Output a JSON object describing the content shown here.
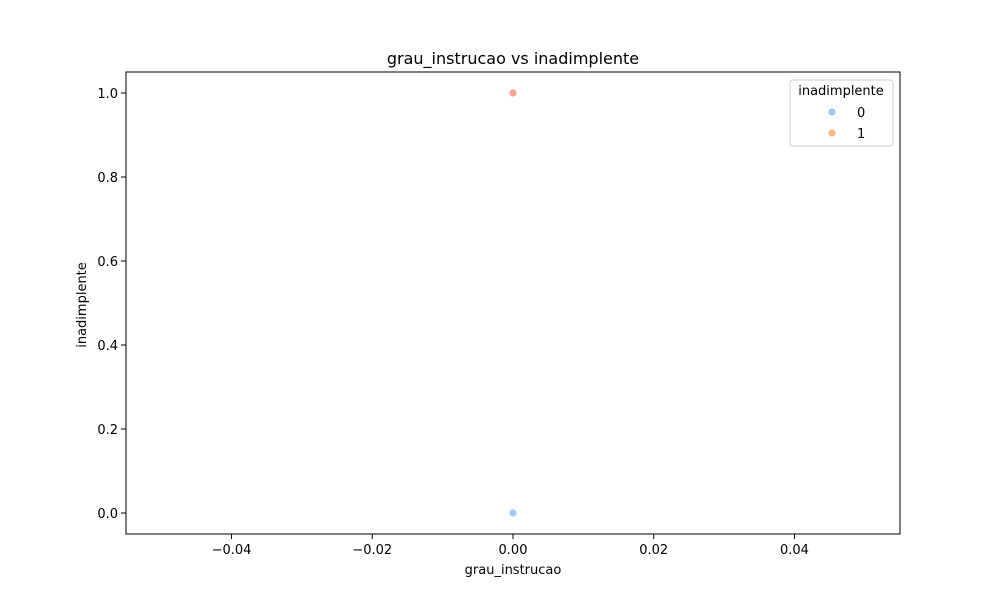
{
  "chart_data": {
    "type": "scatter",
    "title": "grau_instrucao vs inadimplente",
    "xlabel": "grau_instrucao",
    "ylabel": "inadimplente",
    "xlim": [
      -0.055,
      0.055
    ],
    "ylim": [
      -0.05,
      1.05
    ],
    "xticks": [
      -0.04,
      -0.02,
      0.0,
      0.02,
      0.04
    ],
    "xtick_labels": [
      "−0.04",
      "−0.02",
      "0.00",
      "0.02",
      "0.04"
    ],
    "yticks": [
      0.0,
      0.2,
      0.4,
      0.6,
      0.8,
      1.0
    ],
    "ytick_labels": [
      "0.0",
      "0.2",
      "0.4",
      "0.6",
      "0.8",
      "1.0"
    ],
    "grid": false,
    "legend": {
      "title": "inadimplente",
      "placement": "top-right",
      "entries": [
        {
          "label": "0",
          "color": "#a1c9f4"
        },
        {
          "label": "1",
          "color": "#ffb482"
        }
      ]
    },
    "series": [
      {
        "name": "0",
        "color": "#a1c9f4",
        "points": [
          {
            "x": 0.0,
            "y": 0.0
          }
        ]
      },
      {
        "name": "1",
        "color": "#f7a48f",
        "points": [
          {
            "x": 0.0,
            "y": 1.0
          }
        ]
      }
    ]
  }
}
